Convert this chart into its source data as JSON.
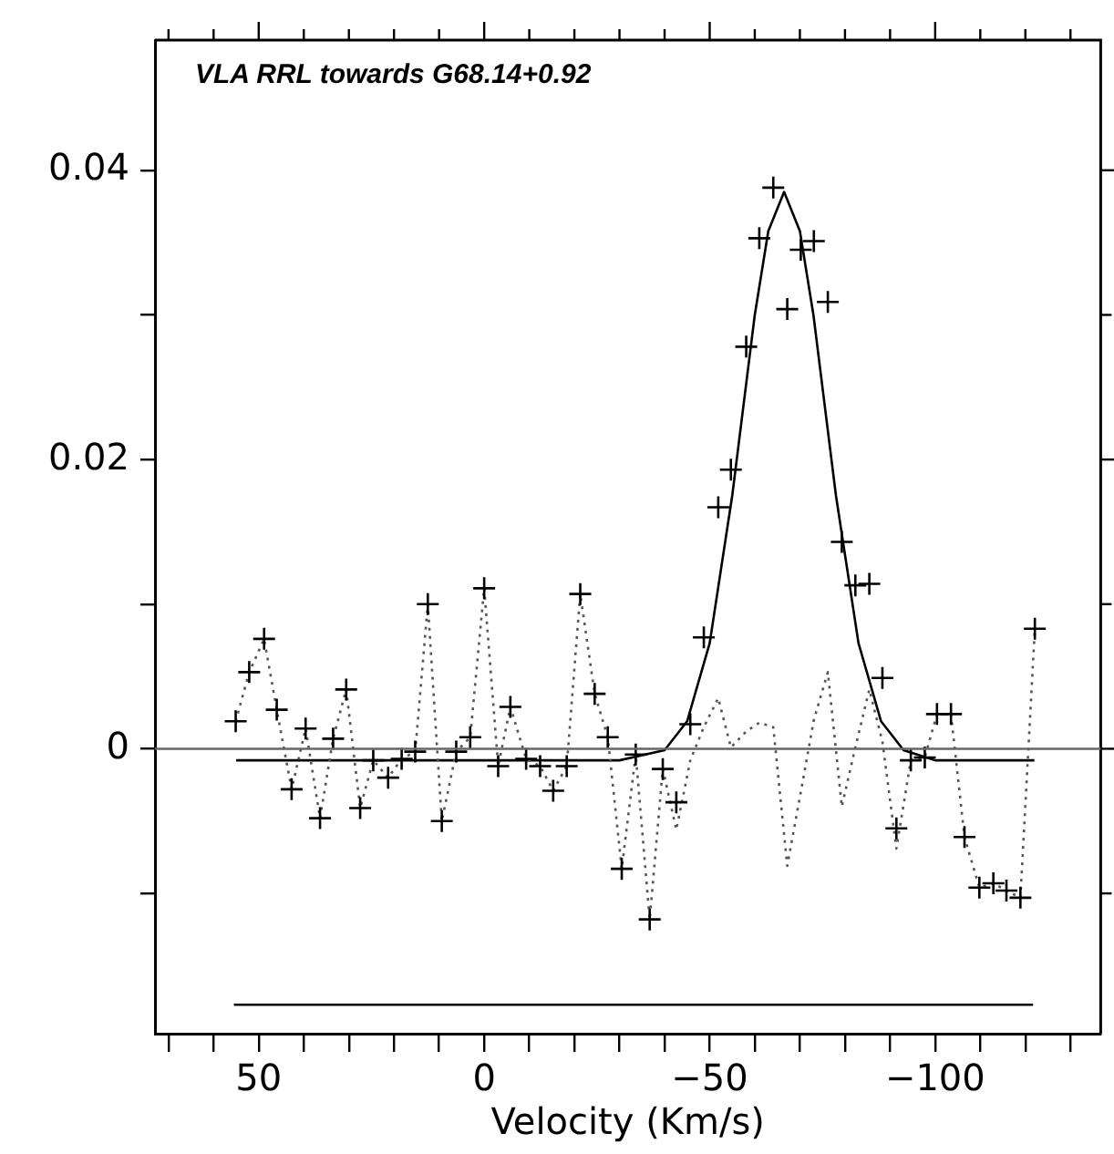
{
  "chart_data": {
    "type": "scatter",
    "title": "VLA RRL towards G68.14+0.92",
    "xlabel": "Velocity (Km/s)",
    "xlim": [
      73,
      -136.7
    ],
    "xticks": [
      {
        "value": 70,
        "label": null
      },
      {
        "value": 60,
        "label": null
      },
      50,
      {
        "value": 40,
        "label": null
      },
      {
        "value": 30,
        "label": null
      },
      {
        "value": 20,
        "label": null
      },
      {
        "value": 10,
        "label": null
      },
      0,
      {
        "value": -10,
        "label": null
      },
      {
        "value": -20,
        "label": null
      },
      {
        "value": -30,
        "label": null
      },
      {
        "value": -40,
        "label": null
      },
      {
        "value": -50,
        "label": "−50"
      },
      {
        "value": -60,
        "label": null
      },
      {
        "value": -70,
        "label": null
      },
      {
        "value": -80,
        "label": null
      },
      {
        "value": -90,
        "label": null
      },
      {
        "value": -100,
        "label": "−100"
      },
      {
        "value": -110,
        "label": null
      },
      {
        "value": -120,
        "label": null
      },
      {
        "value": -130,
        "label": null
      }
    ],
    "ylim": [
      -0.0197,
      0.049
    ],
    "yticks": [
      {
        "value": -0.01,
        "label": null
      },
      0,
      {
        "value": 0.01,
        "label": null
      },
      0.02,
      {
        "value": 0.03,
        "label": null
      },
      0.04
    ],
    "grid": false,
    "legend": false,
    "ref_lines": [
      {
        "axis": "y",
        "value": 0,
        "color": "#666666"
      }
    ],
    "series": [
      {
        "marker": "cross",
        "color": "#000000",
        "x": [
          55.1,
          52.1,
          48.8,
          46.0,
          42.7,
          39.6,
          36.4,
          33.5,
          30.6,
          27.5,
          24.6,
          21.3,
          18.3,
          15.3,
          12.5,
          9.4,
          6.2,
          3.1,
          0,
          -3.1,
          -5.8,
          -9.3,
          -12.4,
          -15.3,
          -18.3,
          -21.3,
          -24.5,
          -27.4,
          -30.5,
          -33.6,
          -36.7,
          -39.6,
          -42.6,
          -45.7,
          -48.7,
          -51.9,
          -54.7,
          -58.1,
          -61.0,
          -64.1,
          -67.2,
          -70.2,
          -73.1,
          -76.2,
          -79.3,
          -82.3,
          -85.4,
          -88.3,
          -91.4,
          -94.6,
          -97.7,
          -100.4,
          -103.5,
          -106.5,
          -109.8,
          -112.9,
          -115.8,
          -118.9,
          -122.1
        ],
        "values": [
          0.0019,
          0.0053,
          0.0076,
          0.0027,
          -0.0028,
          0.0014,
          -0.0048,
          0.0007,
          0.0041,
          -0.0041,
          -0.0008,
          -0.002,
          -0.0007,
          -0.0002,
          0.01,
          -0.005,
          -0.0002,
          0.0008,
          0.0111,
          -0.0012,
          0.0029,
          -0.0007,
          -0.0012,
          -0.0029,
          -0.0012,
          0.0107,
          0.0038,
          0.0008,
          -0.0083,
          -0.0004,
          -0.0118,
          -0.0014,
          -0.0037,
          0.0017,
          0.0077,
          0.0167,
          0.0193,
          0.0278,
          0.0353,
          0.0388,
          0.0304,
          0.0345,
          0.0351,
          0.0309,
          0.0143,
          0.0113,
          0.0114,
          0.0049,
          -0.0055,
          -0.0008,
          -0.0006,
          0.0024,
          0.0024,
          -0.0061,
          -0.0096,
          -0.0093,
          -0.0098,
          -0.0103,
          0.0083
        ]
      },
      {
        "type": "line",
        "line_style": "dotted",
        "marker": "none",
        "color": "#555555",
        "x": [
          55.1,
          52.1,
          48.8,
          46.0,
          42.7,
          39.6,
          36.4,
          33.5,
          30.6,
          27.5,
          24.6,
          21.3,
          18.3,
          15.3,
          12.5,
          9.4,
          6.2,
          3.1,
          0,
          -3.1,
          -5.8,
          -9.3,
          -12.4,
          -15.3,
          -18.3,
          -21.3,
          -24.5,
          -27.4,
          -30.5,
          -33.6,
          -36.7,
          -39.6,
          -42.6,
          -45.7,
          -48.7,
          -51.9,
          -54.7,
          -58.1,
          -61.0,
          -64.1,
          -67.2,
          -70.2,
          -73.1,
          -76.2,
          -79.3,
          -82.3,
          -85.4,
          -88.3,
          -91.4,
          -94.6,
          -97.7,
          -100.4,
          -103.5,
          -106.5,
          -109.8,
          -112.9,
          -115.8,
          -118.9,
          -122.1
        ],
        "values": [
          0.0019,
          0.0053,
          0.0076,
          0.0027,
          -0.0028,
          0.0014,
          -0.0048,
          0.0007,
          0.0041,
          -0.0041,
          -0.0008,
          -0.002,
          -0.0007,
          -0.0002,
          0.01,
          -0.005,
          -0.0002,
          0.0008,
          0.0111,
          -0.0012,
          0.0029,
          -0.0007,
          -0.0012,
          -0.0029,
          -0.0012,
          0.0107,
          0.0038,
          0.0008,
          -0.0083,
          -0.0004,
          -0.0118,
          -0.0014,
          -0.0056,
          -0.0008,
          0.0015,
          0.0035,
          0.0001,
          0.0012,
          0.0018,
          0.0015,
          -0.0081,
          -0.003,
          0.002,
          0.0053,
          -0.004,
          0.0001,
          0.0041,
          0.0005,
          -0.0069,
          -0.0008,
          -0.0006,
          0.0024,
          0.0024,
          -0.0061,
          -0.0096,
          -0.0093,
          -0.0098,
          -0.0103,
          0.0083
        ]
      },
      {
        "type": "line",
        "line_style": "solid",
        "marker": "none",
        "color": "#000000",
        "x": [
          55,
          -30,
          -40,
          -45,
          -50,
          -55,
          -60,
          -63,
          -66.5,
          -70,
          -73,
          -78,
          -83,
          -88,
          -93,
          -100,
          -122
        ],
        "values": [
          -0.0008,
          -0.0008,
          -0.0001,
          0.0019,
          0.0073,
          0.0175,
          0.03,
          0.0358,
          0.0385,
          0.0358,
          0.03,
          0.0175,
          0.0073,
          0.0019,
          -0.0001,
          -0.0008,
          -0.0008
        ]
      },
      {
        "type": "line",
        "line_style": "solid",
        "marker": "none",
        "color": "#000000",
        "x": [
          55.5,
          -121.7
        ],
        "values": [
          -0.0177,
          -0.0177
        ]
      }
    ]
  }
}
